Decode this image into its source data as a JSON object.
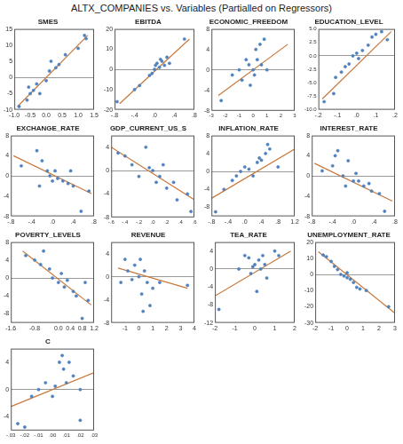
{
  "title": "ALTX_COMPANIES vs. Variables (Partialled on Regressors)",
  "chart_data": [
    {
      "type": "scatter",
      "title": "SMES",
      "xlim": [
        -1,
        1.5
      ],
      "ylim": [
        -10,
        15
      ],
      "xticks": [
        {
          "value": -1,
          "label": "-1.0"
        },
        {
          "value": -0.5,
          "label": "-0.5"
        },
        {
          "value": 0,
          "label": "0.0"
        },
        {
          "value": 0.5,
          "label": "0.5"
        },
        {
          "value": 1,
          "label": "1.0"
        },
        {
          "value": 1.5,
          "label": "1.5"
        }
      ],
      "yticks": [
        -10,
        -5,
        0,
        5,
        10,
        15
      ],
      "series": [
        {
          "type": "scatter",
          "marker": "circle",
          "color": "#4f81bd",
          "x": [
            -0.85,
            -0.6,
            -0.55,
            -0.5,
            -0.4,
            -0.3,
            -0.2,
            0,
            0.1,
            0.15,
            0.3,
            0.4,
            0.6,
            1.0,
            1.2,
            1.25
          ],
          "values": [
            -9,
            -7,
            -3,
            -5,
            -4,
            -2,
            -5,
            -1,
            2,
            5,
            3,
            4,
            7,
            9,
            13,
            12
          ]
        },
        {
          "type": "line",
          "line_style": "solid",
          "color": "#c8783c",
          "x": [
            -0.9,
            1.3
          ],
          "values": [
            -9,
            13
          ]
        }
      ]
    },
    {
      "type": "scatter",
      "title": "EBITDA",
      "xlim": [
        -0.8,
        0.8
      ],
      "ylim": [
        -20,
        20
      ],
      "xticks": [
        {
          "value": -0.8,
          "label": "-.8"
        },
        {
          "value": -0.4,
          "label": "-.4"
        },
        {
          "value": 0,
          "label": ".0"
        },
        {
          "value": 0.4,
          "label": ".4"
        },
        {
          "value": 0.8,
          "label": ".8"
        }
      ],
      "yticks": [
        -20,
        -10,
        0,
        10,
        20
      ],
      "series": [
        {
          "type": "scatter",
          "marker": "circle",
          "color": "#4f81bd",
          "x": [
            -0.75,
            -0.4,
            -0.3,
            -0.1,
            -0.05,
            0,
            0.02,
            0.05,
            0.1,
            0.12,
            0.15,
            0.2,
            0.25,
            0.3,
            0.6
          ],
          "values": [
            -16,
            -10,
            -8,
            -3,
            -2,
            0,
            2,
            3,
            1,
            5,
            4,
            2,
            6,
            3,
            15
          ]
        },
        {
          "type": "line",
          "line_style": "solid",
          "color": "#c8783c",
          "x": [
            -0.7,
            0.7
          ],
          "values": [
            -17,
            15
          ]
        }
      ]
    },
    {
      "type": "scatter",
      "title": "ECONOMIC_FREEDOM",
      "xlim": [
        -3,
        3
      ],
      "ylim": [
        -8,
        8
      ],
      "xticks": [
        -3,
        -2,
        -1,
        0,
        1,
        2,
        3
      ],
      "yticks": [
        -8,
        -4,
        0,
        4,
        8
      ],
      "series": [
        {
          "type": "scatter",
          "marker": "circle",
          "color": "#4f81bd",
          "x": [
            -2.3,
            -1.5,
            -1,
            -0.8,
            -0.5,
            -0.3,
            0,
            0.1,
            0.2,
            0.3,
            0.5,
            0.6,
            0.8,
            1,
            -0.2
          ],
          "values": [
            -6,
            -1,
            0,
            -2,
            2,
            1,
            0,
            -1,
            4,
            2,
            5,
            1,
            6,
            0,
            -3
          ]
        },
        {
          "type": "line",
          "line_style": "solid",
          "color": "#c8783c",
          "x": [
            -2.5,
            2.5
          ],
          "values": [
            -5,
            5
          ]
        }
      ]
    },
    {
      "type": "scatter",
      "title": "EDUCATION_LEVEL",
      "xlim": [
        -0.2,
        0.2
      ],
      "ylim": [
        -10,
        5
      ],
      "xticks": [
        {
          "value": -0.2,
          "label": "-.2"
        },
        {
          "value": -0.1,
          "label": "-.1"
        },
        {
          "value": 0,
          "label": ".0"
        },
        {
          "value": 0.1,
          "label": ".1"
        },
        {
          "value": 0.2,
          "label": ".2"
        }
      ],
      "yticks": [
        {
          "value": -10,
          "label": "-10.0"
        },
        -7.5,
        {
          "value": -5,
          "label": "-5.0"
        },
        -2.5,
        {
          "value": 0,
          "label": "0.0"
        },
        2.5,
        {
          "value": 5,
          "label": "5.0"
        }
      ],
      "series": [
        {
          "type": "scatter",
          "marker": "circle",
          "color": "#4f81bd",
          "x": [
            -0.17,
            -0.12,
            -0.11,
            -0.08,
            -0.06,
            -0.04,
            -0.02,
            0,
            0.01,
            0.03,
            0.06,
            0.08,
            0.1,
            0.13,
            0.16
          ],
          "values": [
            -8.5,
            -7,
            -4,
            -3,
            -2,
            -1.5,
            0,
            0.5,
            -0.5,
            1,
            2,
            3.5,
            4,
            4.5,
            3
          ]
        },
        {
          "type": "line",
          "line_style": "solid",
          "color": "#c8783c",
          "x": [
            -0.18,
            0.18
          ],
          "values": [
            -8,
            4.5
          ]
        }
      ]
    },
    {
      "type": "scatter",
      "title": "EXCHANGE_RATE",
      "xlim": [
        -0.8,
        0.8
      ],
      "ylim": [
        -8,
        8
      ],
      "xticks": [
        {
          "value": -0.8,
          "label": "-.8"
        },
        {
          "value": -0.4,
          "label": "-.4"
        },
        {
          "value": 0,
          "label": ".0"
        },
        {
          "value": 0.4,
          "label": ".4"
        },
        {
          "value": 0.8,
          "label": ".8"
        }
      ],
      "yticks": [
        -8,
        -4,
        0,
        4,
        8
      ],
      "series": [
        {
          "type": "scatter",
          "marker": "circle",
          "color": "#4f81bd",
          "x": [
            -0.6,
            -0.3,
            -0.25,
            -0.2,
            -0.1,
            -0.05,
            0,
            0.05,
            0.1,
            0.2,
            0.3,
            0.35,
            0.4,
            0.55,
            0.7
          ],
          "values": [
            2,
            5,
            -2,
            3,
            1,
            0,
            -1,
            1,
            -0.5,
            -1,
            -1.5,
            1,
            -2,
            -7,
            -3
          ]
        },
        {
          "type": "line",
          "line_style": "solid",
          "color": "#c8783c",
          "x": [
            -0.75,
            0.75
          ],
          "values": [
            4,
            -3.5
          ]
        }
      ]
    },
    {
      "type": "scatter",
      "title": "GDP_CURRENT_US_S",
      "xlim": [
        -0.6,
        0.6
      ],
      "ylim": [
        -8,
        6
      ],
      "xticks": [
        {
          "value": -0.6,
          "label": "-.6"
        },
        {
          "value": -0.4,
          "label": "-.4"
        },
        {
          "value": -0.2,
          "label": "-.2"
        },
        {
          "value": 0,
          "label": ".0"
        },
        {
          "value": 0.2,
          "label": ".2"
        },
        {
          "value": 0.4,
          "label": ".4"
        },
        {
          "value": 0.6,
          "label": ".6"
        }
      ],
      "yticks": [
        -8,
        -4,
        0,
        4
      ],
      "series": [
        {
          "type": "scatter",
          "marker": "circle",
          "color": "#4f81bd",
          "x": [
            -0.5,
            -0.4,
            -0.3,
            -0.2,
            -0.1,
            -0.05,
            0,
            0.05,
            0.1,
            0.15,
            0.2,
            0.3,
            0.35,
            0.5,
            0.55
          ],
          "values": [
            3,
            2.5,
            1,
            -1,
            4,
            0.5,
            0,
            -2,
            -1,
            1,
            -3,
            -2,
            -5,
            -4,
            -7
          ]
        },
        {
          "type": "line",
          "line_style": "solid",
          "color": "#c8783c",
          "x": [
            -0.6,
            0.6
          ],
          "values": [
            4,
            -5
          ]
        }
      ]
    },
    {
      "type": "scatter",
      "title": "INFLATION_RATE",
      "xlim": [
        -0.8,
        1.2
      ],
      "ylim": [
        -10,
        8
      ],
      "xticks": [
        {
          "value": -0.8,
          "label": "-.8"
        },
        {
          "value": -0.4,
          "label": "-.4"
        },
        {
          "value": 0,
          "label": ".0"
        },
        {
          "value": 0.4,
          "label": ".4"
        },
        {
          "value": 0.8,
          "label": ".8"
        },
        1.2
      ],
      "yticks": [
        -8,
        -4,
        0,
        4,
        8
      ],
      "series": [
        {
          "type": "scatter",
          "marker": "circle",
          "color": "#4f81bd",
          "x": [
            -0.7,
            -0.5,
            -0.3,
            -0.2,
            -0.1,
            0,
            0.1,
            0.2,
            0.3,
            0.35,
            0.4,
            0.5,
            0.55,
            0.6,
            0.8
          ],
          "values": [
            -9,
            -4,
            -2,
            -1,
            0,
            1,
            0.5,
            -1,
            2,
            3,
            2.5,
            4,
            6,
            5,
            1
          ]
        },
        {
          "type": "line",
          "line_style": "solid",
          "color": "#c8783c",
          "x": [
            -0.8,
            1.2
          ],
          "values": [
            -6,
            5
          ]
        }
      ]
    },
    {
      "type": "scatter",
      "title": "INTEREST_RATE",
      "xlim": [
        -0.8,
        0.8
      ],
      "ylim": [
        -8,
        8
      ],
      "xticks": [
        {
          "value": -0.8,
          "label": "-.8"
        },
        {
          "value": -0.4,
          "label": "-.4"
        },
        {
          "value": 0,
          "label": ".0"
        },
        {
          "value": 0.4,
          "label": ".4"
        },
        {
          "value": 0.8,
          "label": ".8"
        }
      ],
      "yticks": [
        -8,
        -4,
        0,
        4,
        8
      ],
      "series": [
        {
          "type": "scatter",
          "marker": "circle",
          "color": "#4f81bd",
          "x": [
            -0.6,
            -0.4,
            -0.35,
            -0.3,
            -0.2,
            -0.1,
            0,
            0.05,
            0.1,
            0.2,
            0.3,
            0.35,
            0.5,
            0.6,
            -0.15
          ],
          "values": [
            1,
            2,
            4,
            5,
            0,
            3,
            -1,
            0.5,
            -1,
            -2,
            -1.5,
            -3,
            -3.5,
            -7,
            -2
          ]
        },
        {
          "type": "line",
          "line_style": "solid",
          "color": "#c8783c",
          "x": [
            -0.75,
            0.75
          ],
          "values": [
            2.5,
            -5
          ]
        }
      ]
    },
    {
      "type": "scatter",
      "title": "POVERTY_LEVELS",
      "xlim": [
        -1.6,
        1.2
      ],
      "ylim": [
        -10,
        8
      ],
      "xticks": [
        -1.6,
        -0.8,
        {
          "value": 0,
          "label": "0.0"
        },
        0.4,
        0.8,
        1.2
      ],
      "yticks": [
        -8,
        -4,
        0,
        4,
        8
      ],
      "series": [
        {
          "type": "scatter",
          "marker": "circle",
          "color": "#4f81bd",
          "x": [
            -1.1,
            -0.8,
            -0.6,
            -0.5,
            -0.3,
            -0.2,
            0,
            0.1,
            0.2,
            0.3,
            0.5,
            0.6,
            0.8,
            0.9,
            1.0
          ],
          "values": [
            5,
            4,
            3,
            6,
            2,
            0,
            -1,
            1,
            -2,
            -0.5,
            -3,
            -4,
            -9,
            -1,
            -5
          ]
        },
        {
          "type": "line",
          "line_style": "solid",
          "color": "#c8783c",
          "x": [
            -1.2,
            1.1
          ],
          "values": [
            6,
            -6
          ]
        }
      ]
    },
    {
      "type": "scatter",
      "title": "REVENUE",
      "xlim": [
        -2,
        4
      ],
      "ylim": [
        -8,
        6
      ],
      "xticks": [
        -1,
        0,
        1,
        2,
        3,
        4
      ],
      "yticks": [
        -8,
        -4,
        0,
        4
      ],
      "series": [
        {
          "type": "scatter",
          "marker": "circle",
          "color": "#4f81bd",
          "x": [
            -1.3,
            -1,
            -0.8,
            -0.5,
            -0.3,
            0,
            0.1,
            0.2,
            0.4,
            0.6,
            0.8,
            1,
            1.5,
            3.5,
            0.3
          ],
          "values": [
            -1,
            3,
            1,
            -0.5,
            2,
            0,
            3,
            -3,
            1,
            -1,
            -5,
            -2,
            -1,
            -1.5,
            -6
          ]
        },
        {
          "type": "line",
          "line_style": "solid",
          "color": "#c8783c",
          "x": [
            -1.5,
            3.5
          ],
          "values": [
            1.5,
            -2
          ]
        }
      ]
    },
    {
      "type": "scatter",
      "title": "TEA_RATE",
      "xlim": [
        -2,
        2
      ],
      "ylim": [
        -12,
        6
      ],
      "xticks": [
        -2,
        -1,
        0,
        1,
        2
      ],
      "yticks": [
        -12,
        -8,
        -4,
        0,
        4
      ],
      "series": [
        {
          "type": "scatter",
          "marker": "circle",
          "color": "#4f81bd",
          "x": [
            -1.8,
            -0.8,
            -0.5,
            -0.3,
            -0.2,
            0,
            0.1,
            0.2,
            0.3,
            0.4,
            0.5,
            1,
            1.2,
            -0.1,
            0.6
          ],
          "values": [
            -9,
            0,
            3,
            2.5,
            -1,
            1,
            -5,
            2,
            0,
            3,
            1,
            4,
            3,
            0.5,
            -2
          ]
        },
        {
          "type": "line",
          "line_style": "solid",
          "color": "#c8783c",
          "x": [
            -2,
            1.8
          ],
          "values": [
            -6,
            4
          ]
        }
      ]
    },
    {
      "type": "scatter",
      "title": "UNEMPLOYMENT_RATE",
      "xlim": [
        -2,
        3
      ],
      "ylim": [
        -30,
        20
      ],
      "xticks": [
        -2,
        -1,
        0,
        1,
        2,
        3
      ],
      "yticks": [
        -30,
        -20,
        -10,
        0,
        10,
        20
      ],
      "series": [
        {
          "type": "scatter",
          "marker": "circle",
          "color": "#4f81bd",
          "x": [
            -1.5,
            -1.3,
            -1,
            -0.8,
            -0.6,
            -0.4,
            -0.2,
            0,
            0.2,
            0.4,
            0.6,
            0.8,
            1.2,
            2.6,
            0
          ],
          "values": [
            12,
            11,
            8,
            5,
            3,
            0,
            -1,
            1,
            -3,
            -5,
            -8,
            -9,
            -10,
            -20,
            -2
          ]
        },
        {
          "type": "line",
          "line_style": "solid",
          "color": "#c8783c",
          "x": [
            -1.8,
            3
          ],
          "values": [
            14,
            -24
          ]
        }
      ]
    },
    {
      "type": "scatter",
      "title": "C",
      "xlim": [
        -0.03,
        0.03
      ],
      "ylim": [
        -6,
        6
      ],
      "xticks": [
        {
          "value": -0.03,
          "label": "-.03"
        },
        {
          "value": -0.02,
          "label": "-.02"
        },
        {
          "value": -0.01,
          "label": "-.01"
        },
        {
          "value": 0,
          "label": ".00"
        },
        {
          "value": 0.01,
          "label": ".01"
        },
        {
          "value": 0.02,
          "label": ".02"
        },
        {
          "value": 0.03,
          "label": ".03"
        }
      ],
      "yticks": [
        -4,
        0,
        4
      ],
      "series": [
        {
          "type": "scatter",
          "marker": "circle",
          "color": "#4f81bd",
          "x": [
            -0.025,
            -0.02,
            -0.015,
            -0.01,
            -0.005,
            0,
            0.002,
            0.005,
            0.007,
            0.008,
            0.01,
            0.012,
            0.015,
            0.02,
            0.02
          ],
          "values": [
            -5,
            -5.5,
            -1,
            0,
            1,
            -1,
            0.5,
            4,
            5,
            3,
            1,
            4,
            2,
            0,
            -4.5
          ]
        },
        {
          "type": "line",
          "line_style": "solid",
          "color": "#c8783c",
          "x": [
            -0.03,
            0.03
          ],
          "values": [
            -2.5,
            2.5
          ]
        }
      ]
    }
  ]
}
